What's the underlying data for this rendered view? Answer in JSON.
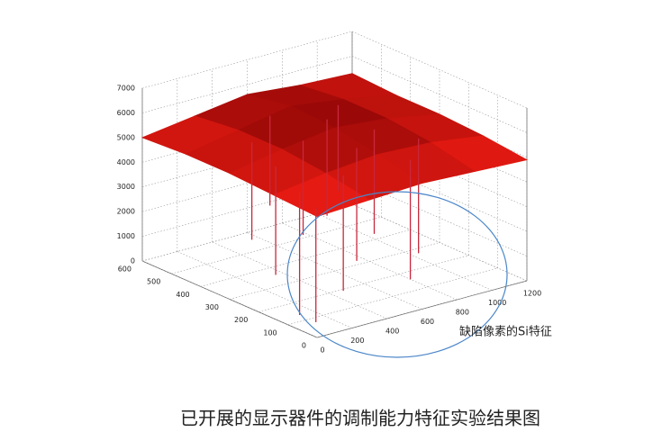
{
  "chart_data": {
    "type": "surface3d",
    "x": [
      0,
      300,
      600,
      900,
      1200
    ],
    "y": [
      0,
      150,
      300,
      450,
      600
    ],
    "z": [
      [
        4900,
        5000,
        5100,
        5000,
        4900
      ],
      [
        5000,
        5300,
        5500,
        5400,
        5100
      ],
      [
        5100,
        5500,
        5800,
        5600,
        5200
      ],
      [
        5100,
        5500,
        5900,
        5600,
        5200
      ],
      [
        5000,
        5300,
        5600,
        5400,
        5300
      ]
    ],
    "defects": {
      "x": [
        60,
        100,
        180,
        260,
        350,
        420,
        480,
        560,
        640,
        700,
        760,
        820,
        880
      ],
      "y": [
        40,
        120,
        250,
        380,
        120,
        300,
        450,
        200,
        350,
        100,
        260,
        420,
        180
      ],
      "z": [
        300,
        100,
        900,
        1500,
        600,
        1800,
        2100,
        1000,
        1900,
        500,
        1400,
        2200,
        800
      ]
    },
    "xlim": [
      0,
      1200
    ],
    "xticks": [
      0,
      200,
      400,
      600,
      800,
      1000,
      1200
    ],
    "ylim": [
      0,
      600
    ],
    "yticks": [
      0,
      100,
      200,
      300,
      400,
      500,
      600
    ],
    "zlim": [
      0,
      7000
    ],
    "zticks": [
      0,
      1000,
      2000,
      3000,
      4000,
      5000,
      6000,
      7000
    ],
    "grid": true,
    "spike_color": "#c8283c",
    "annotation": "缺陷像素的Si特征",
    "annotation_color": "#4a86c8"
  },
  "caption": "已开展的显示器件的调制能力特征实验结果图"
}
